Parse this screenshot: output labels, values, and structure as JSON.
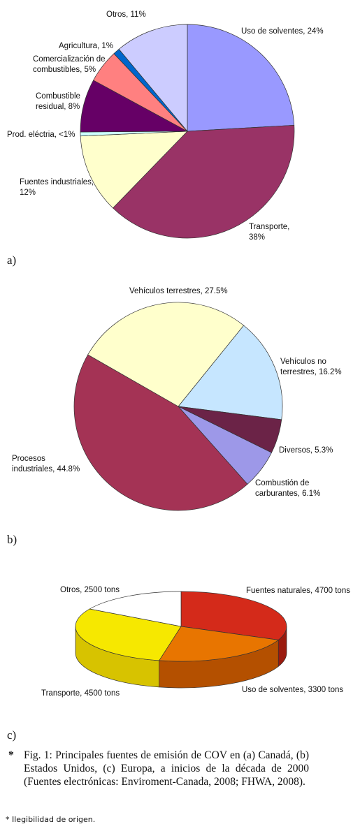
{
  "chart_data": [
    {
      "type": "pie",
      "panel": "a)",
      "slices": [
        {
          "label": [
            "Uso de solventes, 24%"
          ],
          "value": 24,
          "color": "#9999ff"
        },
        {
          "label": [
            "Transporte,",
            "38%"
          ],
          "value": 38,
          "color": "#993366"
        },
        {
          "label": [
            "Fuentes industriales,",
            "12%"
          ],
          "value": 12,
          "color": "#ffffcc"
        },
        {
          "label": [
            "Prod. eléctria, <1%"
          ],
          "value": 0.6,
          "color": "#ccffff"
        },
        {
          "label": [
            "Combustible",
            "residual, 8%"
          ],
          "value": 8,
          "color": "#660066"
        },
        {
          "label": [
            "Comercialización de",
            "combustibles, 5%"
          ],
          "value": 5,
          "color": "#ff8080"
        },
        {
          "label": [
            "Agricultura, 1%"
          ],
          "value": 1,
          "color": "#0066cc"
        },
        {
          "label": [
            "Otros, 11%"
          ],
          "value": 11,
          "color": "#ccccff"
        }
      ]
    },
    {
      "type": "pie",
      "panel": "b)",
      "slices": [
        {
          "label": [
            "Vehículos no",
            "terrestres, 16.2%"
          ],
          "value": 16.2,
          "color": "#c6e6ff"
        },
        {
          "label": [
            "Diversos, 5.3%"
          ],
          "value": 5.3,
          "color": "#6b2347"
        },
        {
          "label": [
            "Combustión de",
            "carburantes, 6.1%"
          ],
          "value": 6.1,
          "color": "#9d98e8"
        },
        {
          "label": [
            "Procesos",
            "industriales, 44.8%"
          ],
          "value": 44.8,
          "color": "#a43355"
        },
        {
          "label": [
            "Vehículos terrestres, 27.5%"
          ],
          "value": 27.5,
          "color": "#ffffcc"
        }
      ]
    },
    {
      "type": "pie",
      "panel": "c)",
      "style": "3d",
      "unit": "tons",
      "slices": [
        {
          "label": [
            "Fuentes naturales, 4700 tons"
          ],
          "value": 4700,
          "color": "#d42a1a",
          "side": "#9a1a0e"
        },
        {
          "label": [
            "Uso de solventes, 3300 tons"
          ],
          "value": 3300,
          "color": "#e87500",
          "side": "#b45000"
        },
        {
          "label": [
            "Transporte, 4500 tons"
          ],
          "value": 4500,
          "color": "#f6e800",
          "side": "#d7c300"
        },
        {
          "label": [
            "Otros, 2500 tons"
          ],
          "value": 2500,
          "color": "#ffffff",
          "side": "#e6e6e6"
        }
      ]
    }
  ],
  "caption": {
    "bullet": "*",
    "text": "Fig. 1: Principales fuentes de emisión de COV en (a) Canadá, (b) Estados Unidos, (c) Europa, a inicios de la década de 2000 (Fuentes electrónicas: Enviroment-Canada, 2008; FHWA, 2008)."
  },
  "footnote": "* Ilegibilidad de origen."
}
